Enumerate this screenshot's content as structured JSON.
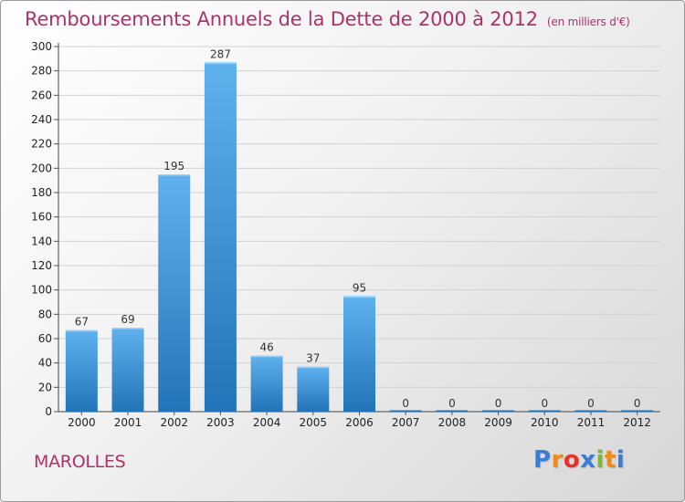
{
  "title": "Remboursements Annuels de la Dette de 2000 à 2012",
  "subtitle": "(en milliers d'€)",
  "commune": "MAROLLES",
  "logo": {
    "text": "Proxiti",
    "letters": [
      "P",
      "r",
      "o",
      "x",
      "i",
      "t",
      "i"
    ],
    "colors": [
      "#3a7cd6",
      "#f08a1a",
      "#e6332a",
      "#3a7cd6",
      "#7ab83a",
      "#f08a1a",
      "#3a7cd6"
    ]
  },
  "chart_data": {
    "type": "bar",
    "categories": [
      "2000",
      "2001",
      "2002",
      "2003",
      "2004",
      "2005",
      "2006",
      "2007",
      "2008",
      "2009",
      "2010",
      "2011",
      "2012"
    ],
    "values": [
      67,
      69,
      195,
      287,
      46,
      37,
      95,
      0,
      0,
      0,
      0,
      0,
      0
    ],
    "data_labels": [
      "67",
      "69",
      "195",
      "287",
      "46",
      "37",
      "95",
      "0",
      "0",
      "0",
      "0",
      "0",
      "0"
    ],
    "title": "Remboursements Annuels de la Dette de 2000 à 2012",
    "xlabel": "",
    "ylabel": "",
    "ylim": [
      0,
      300
    ],
    "yticks": [
      0,
      20,
      40,
      60,
      80,
      100,
      120,
      140,
      160,
      180,
      200,
      220,
      240,
      260,
      280,
      300
    ],
    "grid": true,
    "bar_color": "#3a8fd6"
  }
}
